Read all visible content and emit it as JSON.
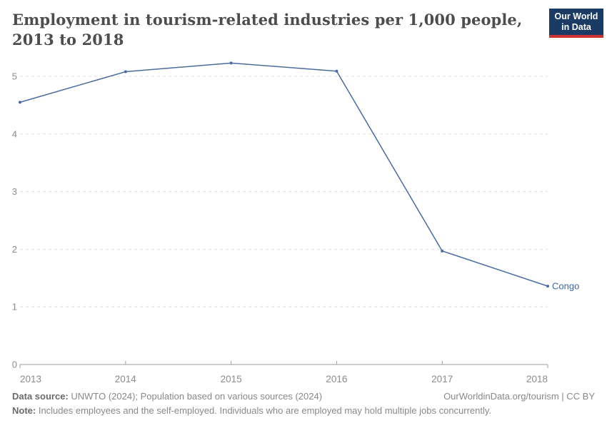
{
  "header": {
    "title": "Employment in tourism-related industries per 1,000 people, 2013 to 2018",
    "logo_line1": "Our World",
    "logo_line2": "in Data"
  },
  "chart_data": {
    "type": "line",
    "title": "Employment in tourism-related industries per 1,000 people, 2013 to 2018",
    "x": [
      2013,
      2014,
      2015,
      2016,
      2017,
      2018
    ],
    "series": [
      {
        "name": "Congo",
        "values": [
          4.55,
          5.08,
          5.23,
          5.09,
          1.97,
          1.36
        ]
      }
    ],
    "yticks": [
      0,
      1,
      2,
      3,
      4,
      5
    ],
    "ylim": [
      0,
      5.6
    ],
    "xlabel": "",
    "ylabel": "",
    "grid": "horizontal-dashed",
    "legend_position": "end-of-line-label"
  },
  "colors": {
    "line": "#4a6b9d",
    "series_label": "#3d6a9e",
    "grid": "#dedede",
    "axis": "#9e9e9e",
    "tick_text": "#8c8c8c",
    "logo_bg": "#1b3b64",
    "logo_red": "#cd3235"
  },
  "footer": {
    "datasource_label": "Data source:",
    "datasource_text": " UNWTO (2024); Population based on various sources (2024)",
    "link_text": "OurWorldinData.org/tourism | CC BY",
    "note_label": "Note:",
    "note_text": " Includes employees and the self-employed. Individuals who are employed may hold multiple jobs concurrently."
  }
}
